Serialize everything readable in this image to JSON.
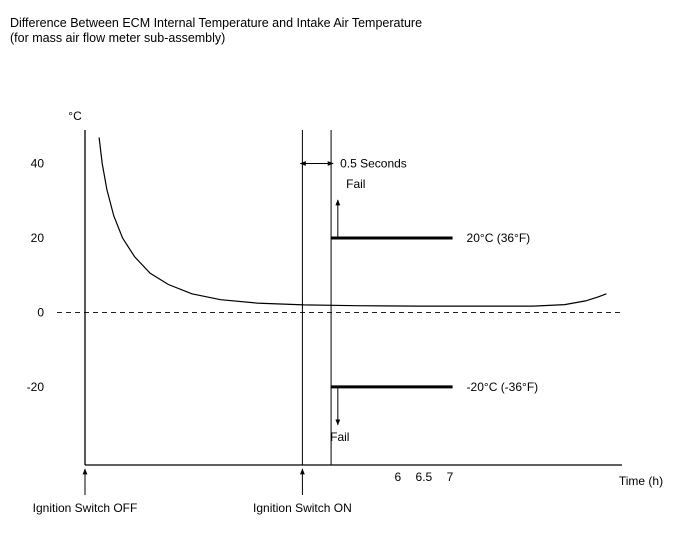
{
  "header": {
    "title": "Difference Between ECM Internal Temperature and Intake Air Temperature",
    "subtitle": "(for mass air flow meter sub-assembly)"
  },
  "chart_data": {
    "type": "line",
    "title": "Difference Between ECM Internal Temperature and Intake Air Temperature",
    "subtitle": "(for mass air flow meter sub-assembly)",
    "ylabel": "°C",
    "xlabel": "Time (h)",
    "yticks": [
      {
        "value": 40,
        "label": "40"
      },
      {
        "value": 20,
        "label": "20"
      },
      {
        "value": 0,
        "label": "0"
      },
      {
        "value": -20,
        "label": "-20"
      }
    ],
    "xticks": [
      {
        "value": 6,
        "label": "6"
      },
      {
        "value": 6.5,
        "label": "6.5"
      },
      {
        "value": 7,
        "label": "7"
      }
    ],
    "ylim": [
      -41,
      49
    ],
    "xlim": [
      0,
      10.3
    ],
    "zero_line_dashed": true,
    "series": [
      {
        "points": [
          [
            0.27,
            47
          ],
          [
            0.33,
            40
          ],
          [
            0.42,
            33
          ],
          [
            0.55,
            26
          ],
          [
            0.72,
            20
          ],
          [
            0.95,
            15
          ],
          [
            1.25,
            10.5
          ],
          [
            1.6,
            7.5
          ],
          [
            2.05,
            5
          ],
          [
            2.6,
            3.4
          ],
          [
            3.3,
            2.5
          ],
          [
            4.2,
            2
          ],
          [
            5.2,
            1.8
          ],
          [
            6.4,
            1.7
          ],
          [
            7.6,
            1.7
          ],
          [
            8.6,
            1.7
          ],
          [
            9.2,
            2.1
          ],
          [
            9.6,
            3.1
          ],
          [
            9.85,
            4.2
          ],
          [
            10.0,
            5
          ]
        ]
      }
    ],
    "thresholds": [
      {
        "value": 20,
        "x_start": 4.72,
        "x_end": 7.05,
        "label": "20°C (36°F)",
        "fail_label": "Fail",
        "fail_direction": "up"
      },
      {
        "value": -20,
        "x_start": 4.72,
        "x_end": 7.05,
        "label": "-20°C (-36°F)",
        "fail_label": "Fail",
        "fail_direction": "down"
      }
    ],
    "events": [
      {
        "x": 0,
        "label": "Ignition Switch OFF"
      },
      {
        "x": 4.17,
        "label": "Ignition Switch ON"
      }
    ],
    "delay_x": 4.72,
    "interval_label": "0.5 Seconds"
  }
}
